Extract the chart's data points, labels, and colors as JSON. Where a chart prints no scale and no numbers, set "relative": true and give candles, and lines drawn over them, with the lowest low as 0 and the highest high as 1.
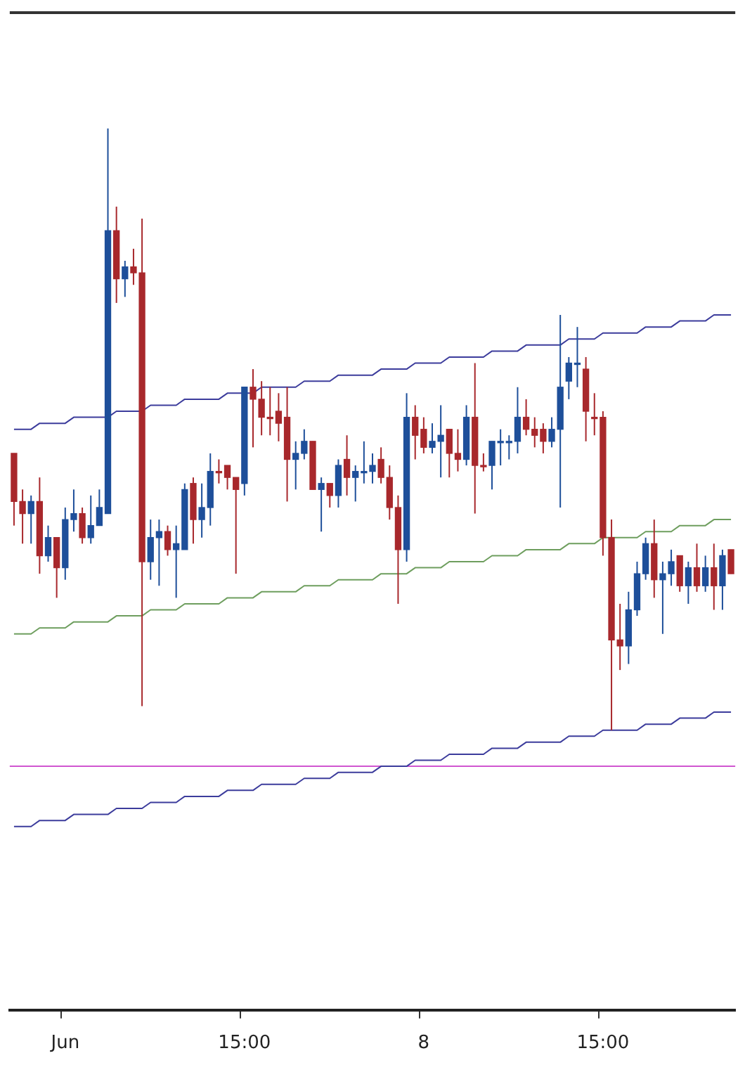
{
  "chart_data": {
    "type": "candlestick",
    "relative": true,
    "grid": false,
    "legend": false,
    "categories": [
      null,
      null,
      null,
      null,
      null,
      null,
      "Jun",
      null,
      null,
      null,
      null,
      null,
      null,
      null,
      null,
      null,
      null,
      null,
      null,
      null,
      null,
      null,
      null,
      null,
      null,
      null,
      null,
      "15:00",
      null,
      null,
      null,
      null,
      null,
      null,
      null,
      null,
      null,
      null,
      null,
      null,
      null,
      null,
      null,
      null,
      null,
      null,
      null,
      null,
      "8",
      null,
      null,
      null,
      null,
      null,
      null,
      null,
      null,
      null,
      null,
      null,
      null,
      null,
      null,
      null,
      null,
      null,
      null,
      null,
      null,
      "15:00",
      null,
      null,
      null,
      null,
      null,
      null,
      null,
      null,
      null,
      null,
      null,
      null,
      null,
      null,
      null
    ],
    "ohlc": [
      [
        0.46,
        0.46,
        0.34,
        0.38
      ],
      [
        0.38,
        0.4,
        0.31,
        0.36
      ],
      [
        0.36,
        0.39,
        0.31,
        0.38
      ],
      [
        0.38,
        0.42,
        0.26,
        0.29
      ],
      [
        0.29,
        0.34,
        0.28,
        0.32
      ],
      [
        0.32,
        0.32,
        0.22,
        0.27
      ],
      [
        0.27,
        0.37,
        0.25,
        0.35
      ],
      [
        0.35,
        0.4,
        0.33,
        0.36
      ],
      [
        0.36,
        0.37,
        0.31,
        0.32
      ],
      [
        0.32,
        0.39,
        0.31,
        0.34
      ],
      [
        0.34,
        0.4,
        0.34,
        0.37
      ],
      [
        0.36,
        1,
        0.36,
        0.83
      ],
      [
        0.83,
        0.87,
        0.71,
        0.75
      ],
      [
        0.75,
        0.78,
        0.72,
        0.77
      ],
      [
        0.77,
        0.8,
        0.74,
        0.76
      ],
      [
        0.76,
        0.85,
        0.04,
        0.28
      ],
      [
        0.28,
        0.35,
        0.25,
        0.32
      ],
      [
        0.32,
        0.35,
        0.24,
        0.33
      ],
      [
        0.33,
        0.34,
        0.29,
        0.3
      ],
      [
        0.3,
        0.34,
        0.22,
        0.31
      ],
      [
        0.3,
        0.41,
        0.3,
        0.4
      ],
      [
        0.41,
        0.42,
        0.31,
        0.35
      ],
      [
        0.35,
        0.41,
        0.32,
        0.37
      ],
      [
        0.37,
        0.46,
        0.34,
        0.43
      ],
      [
        0.43,
        0.45,
        0.41,
        0.43
      ],
      [
        0.44,
        0.44,
        0.4,
        0.42
      ],
      [
        0.42,
        0.42,
        0.26,
        0.4
      ],
      [
        0.41,
        0.57,
        0.39,
        0.57
      ],
      [
        0.57,
        0.6,
        0.47,
        0.55
      ],
      [
        0.55,
        0.58,
        0.49,
        0.52
      ],
      [
        0.52,
        0.57,
        0.49,
        0.52
      ],
      [
        0.53,
        0.56,
        0.48,
        0.51
      ],
      [
        0.52,
        0.57,
        0.38,
        0.45
      ],
      [
        0.45,
        0.48,
        0.4,
        0.46
      ],
      [
        0.46,
        0.5,
        0.45,
        0.48
      ],
      [
        0.48,
        0.48,
        0.4,
        0.4
      ],
      [
        0.4,
        0.42,
        0.33,
        0.41
      ],
      [
        0.41,
        0.41,
        0.37,
        0.39
      ],
      [
        0.39,
        0.45,
        0.37,
        0.44
      ],
      [
        0.45,
        0.49,
        0.39,
        0.42
      ],
      [
        0.42,
        0.44,
        0.38,
        0.43
      ],
      [
        0.43,
        0.48,
        0.41,
        0.43
      ],
      [
        0.43,
        0.46,
        0.41,
        0.44
      ],
      [
        0.45,
        0.47,
        0.41,
        0.42
      ],
      [
        0.42,
        0.44,
        0.35,
        0.37
      ],
      [
        0.37,
        0.39,
        0.21,
        0.3
      ],
      [
        0.3,
        0.56,
        0.28,
        0.52
      ],
      [
        0.52,
        0.54,
        0.45,
        0.49
      ],
      [
        0.5,
        0.52,
        0.46,
        0.47
      ],
      [
        0.47,
        0.51,
        0.46,
        0.48
      ],
      [
        0.48,
        0.54,
        0.42,
        0.49
      ],
      [
        0.5,
        0.5,
        0.42,
        0.46
      ],
      [
        0.46,
        0.5,
        0.43,
        0.45
      ],
      [
        0.45,
        0.54,
        0.44,
        0.52
      ],
      [
        0.52,
        0.61,
        0.36,
        0.44
      ],
      [
        0.44,
        0.46,
        0.43,
        0.44
      ],
      [
        0.44,
        0.48,
        0.4,
        0.48
      ],
      [
        0.48,
        0.5,
        0.44,
        0.48
      ],
      [
        0.48,
        0.49,
        0.45,
        0.48
      ],
      [
        0.48,
        0.57,
        0.46,
        0.52
      ],
      [
        0.52,
        0.55,
        0.49,
        0.5
      ],
      [
        0.5,
        0.52,
        0.47,
        0.49
      ],
      [
        0.5,
        0.51,
        0.46,
        0.48
      ],
      [
        0.48,
        0.52,
        0.47,
        0.5
      ],
      [
        0.5,
        0.69,
        0.37,
        0.57
      ],
      [
        0.58,
        0.62,
        0.55,
        0.61
      ],
      [
        0.61,
        0.67,
        0.57,
        0.61
      ],
      [
        0.6,
        0.62,
        0.48,
        0.53
      ],
      [
        0.52,
        0.56,
        0.49,
        0.52
      ],
      [
        0.52,
        0.53,
        0.29,
        0.32
      ],
      [
        0.32,
        0.35,
        0,
        0.15
      ],
      [
        0.15,
        0.21,
        0.1,
        0.14
      ],
      [
        0.14,
        0.23,
        0.11,
        0.2
      ],
      [
        0.2,
        0.28,
        0.19,
        0.26
      ],
      [
        0.26,
        0.32,
        0.25,
        0.31
      ],
      [
        0.31,
        0.35,
        0.22,
        0.25
      ],
      [
        0.25,
        0.28,
        0.16,
        0.26
      ],
      [
        0.26,
        0.3,
        0.24,
        0.28
      ],
      [
        0.29,
        0.29,
        0.23,
        0.24
      ],
      [
        0.24,
        0.28,
        0.21,
        0.27
      ],
      [
        0.27,
        0.31,
        0.23,
        0.24
      ],
      [
        0.24,
        0.29,
        0.23,
        0.27
      ],
      [
        0.27,
        0.31,
        0.2,
        0.24
      ],
      [
        0.24,
        0.3,
        0.2,
        0.29
      ],
      [
        0.3,
        0.3,
        0.26,
        0.26
      ]
    ],
    "colors": [
      "#a8282c",
      "#a8282c",
      "#1e4f9a",
      "#a8282c",
      "#1e4f9a",
      "#a8282c",
      "#1e4f9a",
      "#1e4f9a",
      "#a8282c",
      "#1e4f9a",
      "#1e4f9a",
      "#1e4f9a",
      "#a8282c",
      "#1e4f9a",
      "#a8282c",
      "#a8282c",
      "#1e4f9a",
      "#1e4f9a",
      "#a8282c",
      "#1e4f9a",
      "#1e4f9a",
      "#a8282c",
      "#1e4f9a",
      "#1e4f9a",
      "#a8282c",
      "#a8282c",
      "#a8282c",
      "#1e4f9a",
      "#a8282c",
      "#a8282c",
      "#a8282c",
      "#a8282c",
      "#a8282c",
      "#1e4f9a",
      "#1e4f9a",
      "#a8282c",
      "#1e4f9a",
      "#a8282c",
      "#1e4f9a",
      "#a8282c",
      "#1e4f9a",
      "#1e4f9a",
      "#1e4f9a",
      "#a8282c",
      "#a8282c",
      "#a8282c",
      "#1e4f9a",
      "#a8282c",
      "#a8282c",
      "#1e4f9a",
      "#1e4f9a",
      "#a8282c",
      "#a8282c",
      "#1e4f9a",
      "#a8282c",
      "#a8282c",
      "#1e4f9a",
      "#1e4f9a",
      "#1e4f9a",
      "#1e4f9a",
      "#a8282c",
      "#a8282c",
      "#a8282c",
      "#1e4f9a",
      "#1e4f9a",
      "#1e4f9a",
      "#1e4f9a",
      "#a8282c",
      "#a8282c",
      "#a8282c",
      "#a8282c",
      "#a8282c",
      "#1e4f9a",
      "#1e4f9a",
      "#1e4f9a",
      "#a8282c",
      "#1e4f9a",
      "#1e4f9a",
      "#a8282c",
      "#1e4f9a",
      "#a8282c",
      "#1e4f9a",
      "#a8282c",
      "#1e4f9a",
      "#a8282c"
    ],
    "series": [
      {
        "type": "line",
        "color": "#3c3c9c",
        "values": [
          0.5,
          0.5,
          0.5,
          0.51,
          0.51,
          0.51,
          0.51,
          0.52,
          0.52,
          0.52,
          0.52,
          0.52,
          0.53,
          0.53,
          0.53,
          0.53,
          0.54,
          0.54,
          0.54,
          0.54,
          0.55,
          0.55,
          0.55,
          0.55,
          0.55,
          0.56,
          0.56,
          0.56,
          0.56,
          0.57,
          0.57,
          0.57,
          0.57,
          0.57,
          0.58,
          0.58,
          0.58,
          0.58,
          0.59,
          0.59,
          0.59,
          0.59,
          0.59,
          0.6,
          0.6,
          0.6,
          0.6,
          0.61,
          0.61,
          0.61,
          0.61,
          0.62,
          0.62,
          0.62,
          0.62,
          0.62,
          0.63,
          0.63,
          0.63,
          0.63,
          0.64,
          0.64,
          0.64,
          0.64,
          0.64,
          0.65,
          0.65,
          0.65,
          0.65,
          0.66,
          0.66,
          0.66,
          0.66,
          0.66,
          0.67,
          0.67,
          0.67,
          0.67,
          0.68,
          0.68,
          0.68,
          0.68,
          0.69,
          0.69,
          0.69
        ]
      },
      {
        "type": "line",
        "color": "#6e9e5e",
        "values": [
          0.16,
          0.16,
          0.16,
          0.17,
          0.17,
          0.17,
          0.17,
          0.18,
          0.18,
          0.18,
          0.18,
          0.18,
          0.19,
          0.19,
          0.19,
          0.19,
          0.2,
          0.2,
          0.2,
          0.2,
          0.21,
          0.21,
          0.21,
          0.21,
          0.21,
          0.22,
          0.22,
          0.22,
          0.22,
          0.23,
          0.23,
          0.23,
          0.23,
          0.23,
          0.24,
          0.24,
          0.24,
          0.24,
          0.25,
          0.25,
          0.25,
          0.25,
          0.25,
          0.26,
          0.26,
          0.26,
          0.26,
          0.27,
          0.27,
          0.27,
          0.27,
          0.28,
          0.28,
          0.28,
          0.28,
          0.28,
          0.29,
          0.29,
          0.29,
          0.29,
          0.3,
          0.3,
          0.3,
          0.3,
          0.3,
          0.31,
          0.31,
          0.31,
          0.31,
          0.32,
          0.32,
          0.32,
          0.32,
          0.32,
          0.33,
          0.33,
          0.33,
          0.33,
          0.34,
          0.34,
          0.34,
          0.34,
          0.35,
          0.35,
          0.35
        ]
      },
      {
        "type": "line",
        "color": "#3c3c9c",
        "values": [
          -0.16,
          -0.16,
          -0.16,
          -0.15,
          -0.15,
          -0.15,
          -0.15,
          -0.14,
          -0.14,
          -0.14,
          -0.14,
          -0.14,
          -0.13,
          -0.13,
          -0.13,
          -0.13,
          -0.12,
          -0.12,
          -0.12,
          -0.12,
          -0.11,
          -0.11,
          -0.11,
          -0.11,
          -0.11,
          -0.1,
          -0.1,
          -0.1,
          -0.1,
          -0.09,
          -0.09,
          -0.09,
          -0.09,
          -0.09,
          -0.08,
          -0.08,
          -0.08,
          -0.08,
          -0.07,
          -0.07,
          -0.07,
          -0.07,
          -0.07,
          -0.06,
          -0.06,
          -0.06,
          -0.06,
          -0.05,
          -0.05,
          -0.05,
          -0.05,
          -0.04,
          -0.04,
          -0.04,
          -0.04,
          -0.04,
          -0.03,
          -0.03,
          -0.03,
          -0.03,
          -0.02,
          -0.02,
          -0.02,
          -0.02,
          -0.02,
          -0.01,
          -0.01,
          -0.01,
          -0.01,
          0,
          0,
          0,
          0,
          0,
          0.01,
          0.01,
          0.01,
          0.01,
          0.02,
          0.02,
          0.02,
          0.02,
          0.03,
          0.03,
          0.03
        ]
      }
    ],
    "ref_lines": [
      {
        "axis": "y",
        "value": -0.06,
        "color": "#d055d0"
      }
    ]
  }
}
